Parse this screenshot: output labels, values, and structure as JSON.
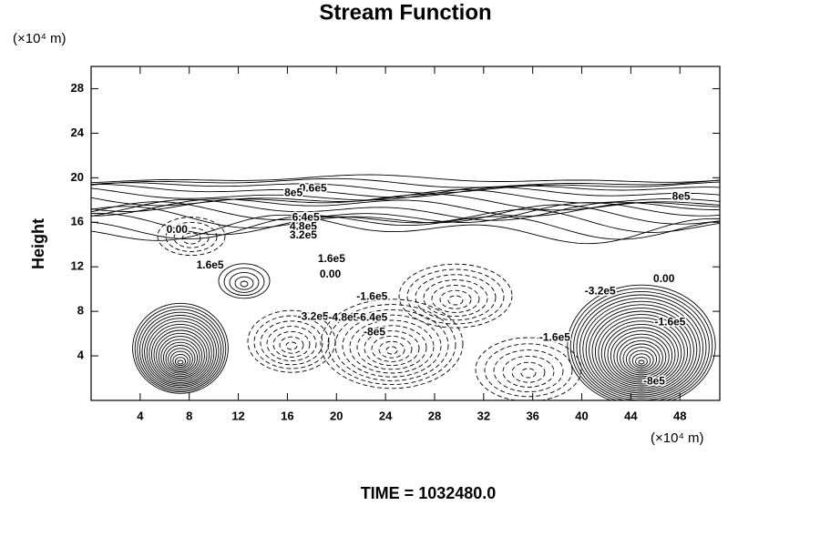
{
  "chart_data": {
    "type": "contour",
    "title": "Stream Function",
    "ylabel": "Height",
    "y_unit": "(×10⁴ m)",
    "x_unit": "(×10⁴ m)",
    "footer": "TIME = 1032480.0",
    "xlim": [
      0,
      51.25
    ],
    "ylim": [
      0,
      30
    ],
    "xticks": [
      4,
      8,
      12,
      16,
      20,
      24,
      28,
      32,
      36,
      40,
      44,
      48
    ],
    "yticks": [
      4,
      8,
      12,
      16,
      20,
      24,
      28
    ],
    "contour_labels": [
      {
        "text": "9.6e5",
        "x": 18.1,
        "y": 19.0
      },
      {
        "text": "8e5",
        "x": 16.5,
        "y": 18.6
      },
      {
        "text": "6.4e5",
        "x": 17.5,
        "y": 16.4
      },
      {
        "text": "4.8e5",
        "x": 17.3,
        "y": 15.6
      },
      {
        "text": "3.2e5",
        "x": 17.3,
        "y": 14.8
      },
      {
        "text": "0.00",
        "x": 7.0,
        "y": 15.3
      },
      {
        "text": "1.6e5",
        "x": 9.7,
        "y": 12.1
      },
      {
        "text": "1.6e5",
        "x": 19.6,
        "y": 12.7
      },
      {
        "text": "0.00",
        "x": 19.5,
        "y": 11.3
      },
      {
        "text": "-3.2e5",
        "x": 18.1,
        "y": 7.5
      },
      {
        "text": "-4.8e5",
        "x": 20.6,
        "y": 7.4
      },
      {
        "text": "-1.6e5",
        "x": 22.9,
        "y": 9.3
      },
      {
        "text": "-6.4e5",
        "x": 22.9,
        "y": 7.4
      },
      {
        "text": "-8e5",
        "x": 23.1,
        "y": 6.1
      },
      {
        "text": "-1.6e5",
        "x": 37.8,
        "y": 5.6
      },
      {
        "text": "-3.2e5",
        "x": 41.5,
        "y": 9.8
      },
      {
        "text": "0.00",
        "x": 46.7,
        "y": 10.9
      },
      {
        "text": "-1.6e5",
        "x": 47.2,
        "y": 7.0
      },
      {
        "text": "8e5",
        "x": 48.1,
        "y": 18.3
      },
      {
        "text": "-8e5",
        "x": 45.9,
        "y": 1.7
      }
    ]
  }
}
